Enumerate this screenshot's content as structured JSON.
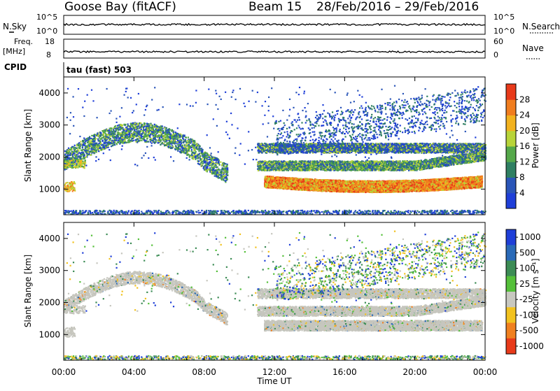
{
  "header": {
    "station": "Goose Bay (fitACF)",
    "beam": "Beam 15",
    "dates": "28/Feb/2016 – 29/Feb/2016"
  },
  "top_panels": {
    "nsky_label": "N.Sky",
    "nsky_tick_top": "10^5",
    "nsky_tick_bottom": "10^0",
    "nsearch_label": "N.Search",
    "nsearch_tick_top": "10^5",
    "nsearch_tick_bottom": "10^0",
    "freq_label": "Freq.",
    "freq_unit": "[MHz]",
    "freq_tick_top": "18",
    "freq_tick_bottom": "8",
    "nave_label": "Nave",
    "nave_tick_top": "60",
    "nave_tick_bottom": "0",
    "cpid_label": "CPID",
    "cpid_value": "tau (fast) 503"
  },
  "chart_data": [
    {
      "type": "heatmap",
      "name": "power",
      "ylabel": "Slant Range [km]",
      "y_ticks": [
        1000,
        2000,
        3000,
        4000
      ],
      "ylim": [
        200,
        4500
      ],
      "xlim_hours": [
        0,
        24
      ],
      "colorbar": {
        "label": "Power [dB]",
        "ticks": [
          "4",
          "8",
          "12",
          "16",
          "20",
          "24",
          "28"
        ],
        "colors": [
          "#1f3fd8",
          "#2a55b8",
          "#2f7f62",
          "#55a84a",
          "#b8d43a",
          "#f2b21f",
          "#f07d1f",
          "#e83a1a"
        ],
        "range": [
          0,
          30
        ]
      }
    },
    {
      "type": "heatmap",
      "name": "velocity",
      "ylabel": "Slant Range [km]",
      "y_ticks": [
        1000,
        2000,
        3000,
        4000
      ],
      "ylim": [
        200,
        4500
      ],
      "xlim_hours": [
        0,
        24
      ],
      "colorbar": {
        "label": "Velocity [m s⁻¹]",
        "ticks": [
          "1000",
          "500",
          "100",
          "25",
          "-25",
          "-100",
          "-500",
          "-1000"
        ],
        "colors": [
          "#1f3fd8",
          "#2a6ab8",
          "#3c8c55",
          "#55c03a",
          "#c8c8c0",
          "#f2c21f",
          "#f0801f",
          "#e83a1a"
        ]
      }
    }
  ],
  "time_axis": {
    "label": "Time UT",
    "ticks": [
      "00:00",
      "04:00",
      "08:00",
      "12:00",
      "16:00",
      "20:00",
      "00:00"
    ]
  }
}
